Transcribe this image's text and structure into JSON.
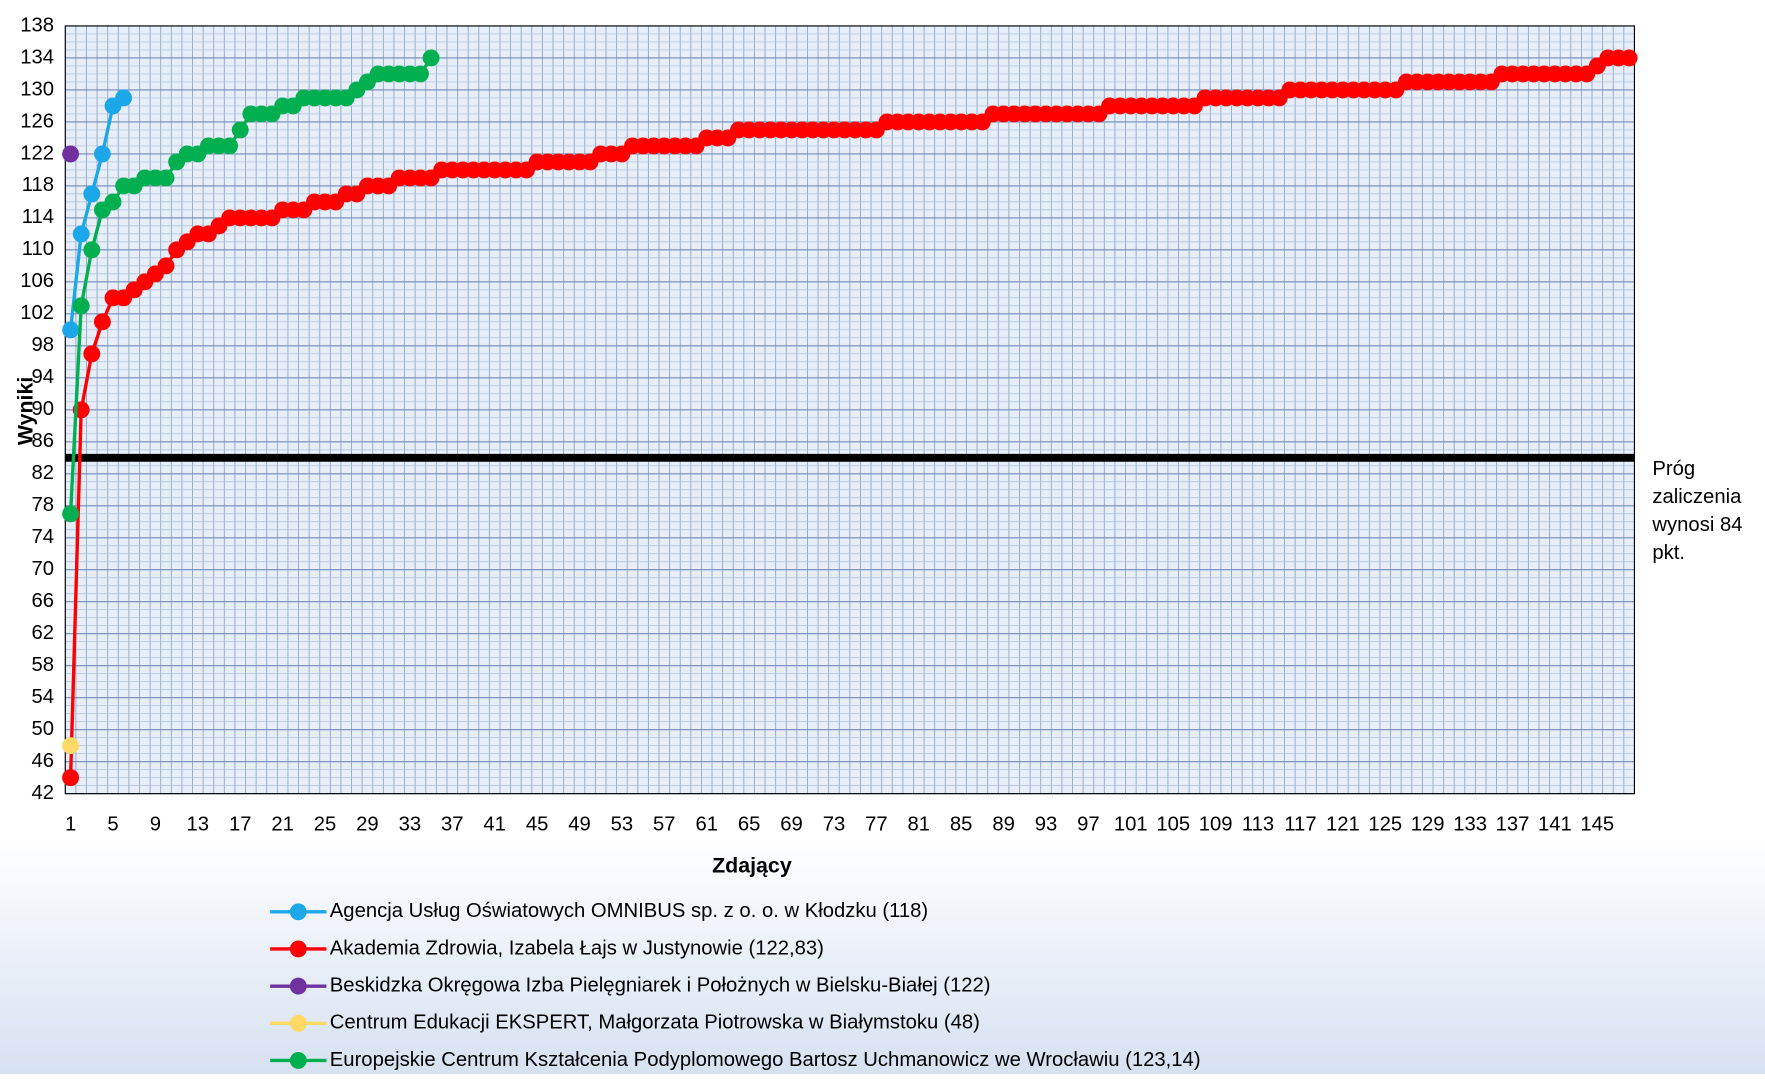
{
  "chart_data": {
    "type": "line",
    "y_axis_label": "Wyniki",
    "x_axis_label": "Zdający",
    "threshold": {
      "value": 84,
      "label": [
        "Próg",
        "zaliczenia",
        "wynosi 84",
        "pkt."
      ],
      "color": "#000000"
    },
    "ylim": [
      42,
      138
    ],
    "yticks": [
      42,
      46,
      50,
      54,
      58,
      62,
      66,
      70,
      74,
      78,
      82,
      86,
      90,
      94,
      98,
      102,
      106,
      110,
      114,
      118,
      122,
      126,
      130,
      134,
      138
    ],
    "grid": true,
    "categories": [
      1,
      null,
      null,
      null,
      5,
      null,
      null,
      null,
      9,
      null,
      null,
      null,
      13,
      null,
      null,
      null,
      17,
      null,
      null,
      null,
      21,
      null,
      null,
      null,
      25,
      null,
      null,
      null,
      29,
      null,
      null,
      null,
      33,
      null,
      null,
      null,
      37,
      null,
      null,
      null,
      41,
      null,
      null,
      null,
      45,
      null,
      null,
      null,
      49,
      null,
      null,
      null,
      53,
      null,
      null,
      null,
      57,
      null,
      null,
      null,
      61,
      null,
      null,
      null,
      65,
      null,
      null,
      null,
      69,
      null,
      null,
      null,
      73,
      null,
      null,
      null,
      77,
      null,
      null,
      null,
      81,
      null,
      null,
      null,
      85,
      null,
      null,
      null,
      89,
      null,
      null,
      null,
      93,
      null,
      null,
      null,
      97,
      null,
      null,
      null,
      101,
      null,
      null,
      null,
      105,
      null,
      null,
      null,
      109,
      null,
      null,
      null,
      113,
      null,
      null,
      null,
      117,
      null,
      null,
      null,
      121,
      null,
      null,
      null,
      125,
      null,
      null,
      null,
      129,
      null,
      null,
      null,
      133,
      null,
      null,
      null,
      137,
      null,
      null,
      null,
      141,
      null,
      null,
      null,
      145,
      null,
      null,
      null
    ],
    "series": [
      {
        "name": "Agencja Usług Oświatowych OMNIBUS sp. z o. o. w Kłodzku (118)",
        "color": "#1ca8e8",
        "values": [
          100,
          112,
          117,
          122,
          128,
          129,
          null,
          null,
          null,
          null,
          null,
          null,
          null,
          null,
          null,
          null,
          null,
          null,
          null,
          null,
          null,
          null,
          null,
          null,
          null,
          null,
          null,
          null,
          null,
          null,
          null,
          null,
          null,
          null,
          null,
          null,
          null,
          null,
          null,
          null,
          null,
          null,
          null,
          null,
          null,
          null,
          null,
          null,
          null,
          null,
          null,
          null,
          null,
          null,
          null,
          null,
          null,
          null,
          null,
          null,
          null,
          null,
          null,
          null,
          null,
          null,
          null,
          null,
          null,
          null,
          null,
          null,
          null,
          null,
          null,
          null,
          null,
          null,
          null,
          null,
          null,
          null,
          null,
          null,
          null,
          null,
          null,
          null,
          null,
          null,
          null,
          null,
          null,
          null,
          null,
          null,
          null,
          null,
          null,
          null,
          null,
          null,
          null,
          null,
          null,
          null,
          null,
          null,
          null,
          null,
          null,
          null,
          null,
          null,
          null,
          null,
          null,
          null,
          null,
          null,
          null,
          null,
          null,
          null,
          null,
          null,
          null,
          null,
          null,
          null,
          null,
          null,
          null,
          null,
          null,
          null,
          null,
          null,
          null,
          null,
          null,
          null,
          null,
          null,
          null,
          null,
          null,
          null
        ]
      },
      {
        "name": "Akademia Zdrowia, Izabela Łajs w Justynowie (122,83)",
        "color": "#ff0000",
        "values": [
          44,
          90,
          97,
          101,
          104,
          104,
          105,
          106,
          107,
          108,
          110,
          111,
          112,
          112,
          113,
          114,
          114,
          114,
          114,
          114,
          115,
          115,
          115,
          116,
          116,
          116,
          117,
          117,
          118,
          118,
          118,
          119,
          119,
          119,
          119,
          120,
          120,
          120,
          120,
          120,
          120,
          120,
          120,
          120,
          121,
          121,
          121,
          121,
          121,
          121,
          122,
          122,
          122,
          123,
          123,
          123,
          123,
          123,
          123,
          123,
          124,
          124,
          124,
          125,
          125,
          125,
          125,
          125,
          125,
          125,
          125,
          125,
          125,
          125,
          125,
          125,
          125,
          126,
          126,
          126,
          126,
          126,
          126,
          126,
          126,
          126,
          126,
          127,
          127,
          127,
          127,
          127,
          127,
          127,
          127,
          127,
          127,
          127,
          128,
          128,
          128,
          128,
          128,
          128,
          128,
          128,
          128,
          129,
          129,
          129,
          129,
          129,
          129,
          129,
          129,
          130,
          130,
          130,
          130,
          130,
          130,
          130,
          130,
          130,
          130,
          130,
          131,
          131,
          131,
          131,
          131,
          131,
          131,
          131,
          131,
          132,
          132,
          132,
          132,
          132,
          132,
          132,
          132,
          132,
          133,
          134,
          134,
          134
        ]
      },
      {
        "name": "Beskidzka Okręgowa Izba Pielęgniarek i Położnych w Bielsku-Białej (122)",
        "color": "#7030a0",
        "values": [
          122,
          null,
          null,
          null,
          null,
          null,
          null,
          null,
          null,
          null,
          null,
          null,
          null,
          null,
          null,
          null,
          null,
          null,
          null,
          null,
          null,
          null,
          null,
          null,
          null,
          null,
          null,
          null,
          null,
          null,
          null,
          null,
          null,
          null,
          null,
          null,
          null,
          null,
          null,
          null,
          null,
          null,
          null,
          null,
          null,
          null,
          null,
          null,
          null,
          null,
          null,
          null,
          null,
          null,
          null,
          null,
          null,
          null,
          null,
          null,
          null,
          null,
          null,
          null,
          null,
          null,
          null,
          null,
          null,
          null,
          null,
          null,
          null,
          null,
          null,
          null,
          null,
          null,
          null,
          null,
          null,
          null,
          null,
          null,
          null,
          null,
          null,
          null,
          null,
          null,
          null,
          null,
          null,
          null,
          null,
          null,
          null,
          null,
          null,
          null,
          null,
          null,
          null,
          null,
          null,
          null,
          null,
          null,
          null,
          null,
          null,
          null,
          null,
          null,
          null,
          null,
          null,
          null,
          null,
          null,
          null,
          null,
          null,
          null,
          null,
          null,
          null,
          null,
          null,
          null,
          null,
          null,
          null,
          null,
          null,
          null,
          null,
          null,
          null,
          null,
          null,
          null,
          null,
          null,
          null,
          null,
          null,
          null
        ]
      },
      {
        "name": "Centrum Edukacji EKSPERT, Małgorzata Piotrowska w Białymstoku (48)",
        "color": "#ffd966",
        "values": [
          48,
          null,
          null,
          null,
          null,
          null,
          null,
          null,
          null,
          null,
          null,
          null,
          null,
          null,
          null,
          null,
          null,
          null,
          null,
          null,
          null,
          null,
          null,
          null,
          null,
          null,
          null,
          null,
          null,
          null,
          null,
          null,
          null,
          null,
          null,
          null,
          null,
          null,
          null,
          null,
          null,
          null,
          null,
          null,
          null,
          null,
          null,
          null,
          null,
          null,
          null,
          null,
          null,
          null,
          null,
          null,
          null,
          null,
          null,
          null,
          null,
          null,
          null,
          null,
          null,
          null,
          null,
          null,
          null,
          null,
          null,
          null,
          null,
          null,
          null,
          null,
          null,
          null,
          null,
          null,
          null,
          null,
          null,
          null,
          null,
          null,
          null,
          null,
          null,
          null,
          null,
          null,
          null,
          null,
          null,
          null,
          null,
          null,
          null,
          null,
          null,
          null,
          null,
          null,
          null,
          null,
          null,
          null,
          null,
          null,
          null,
          null,
          null,
          null,
          null,
          null,
          null,
          null,
          null,
          null,
          null,
          null,
          null,
          null,
          null,
          null,
          null,
          null,
          null,
          null,
          null,
          null,
          null,
          null,
          null,
          null,
          null,
          null,
          null,
          null,
          null,
          null,
          null,
          null,
          null,
          null,
          null,
          null
        ]
      },
      {
        "name": "Europejskie Centrum Kształcenia Podyplomowego Bartosz Uchmanowicz we Wrocławiu (123,14)",
        "color": "#00b050",
        "values": [
          77,
          103,
          110,
          115,
          116,
          118,
          118,
          119,
          119,
          119,
          121,
          122,
          122,
          123,
          123,
          123,
          125,
          127,
          127,
          127,
          128,
          128,
          129,
          129,
          129,
          129,
          129,
          130,
          131,
          132,
          132,
          132,
          132,
          132,
          134,
          null,
          null,
          null,
          null,
          null,
          null,
          null,
          null,
          null,
          null,
          null,
          null,
          null,
          null,
          null,
          null,
          null,
          null,
          null,
          null,
          null,
          null,
          null,
          null,
          null,
          null,
          null,
          null,
          null,
          null,
          null,
          null,
          null,
          null,
          null,
          null,
          null,
          null,
          null,
          null,
          null,
          null,
          null,
          null,
          null,
          null,
          null,
          null,
          null,
          null,
          null,
          null,
          null,
          null,
          null,
          null,
          null,
          null,
          null,
          null,
          null,
          null,
          null,
          null,
          null,
          null,
          null,
          null,
          null,
          null,
          null,
          null,
          null,
          null,
          null,
          null,
          null,
          null,
          null,
          null,
          null,
          null,
          null,
          null,
          null,
          null,
          null,
          null,
          null,
          null,
          null,
          null,
          null,
          null,
          null,
          null,
          null,
          null,
          null,
          null,
          null,
          null,
          null,
          null,
          null,
          null,
          null,
          null,
          null,
          null,
          null,
          null,
          null
        ]
      }
    ]
  }
}
